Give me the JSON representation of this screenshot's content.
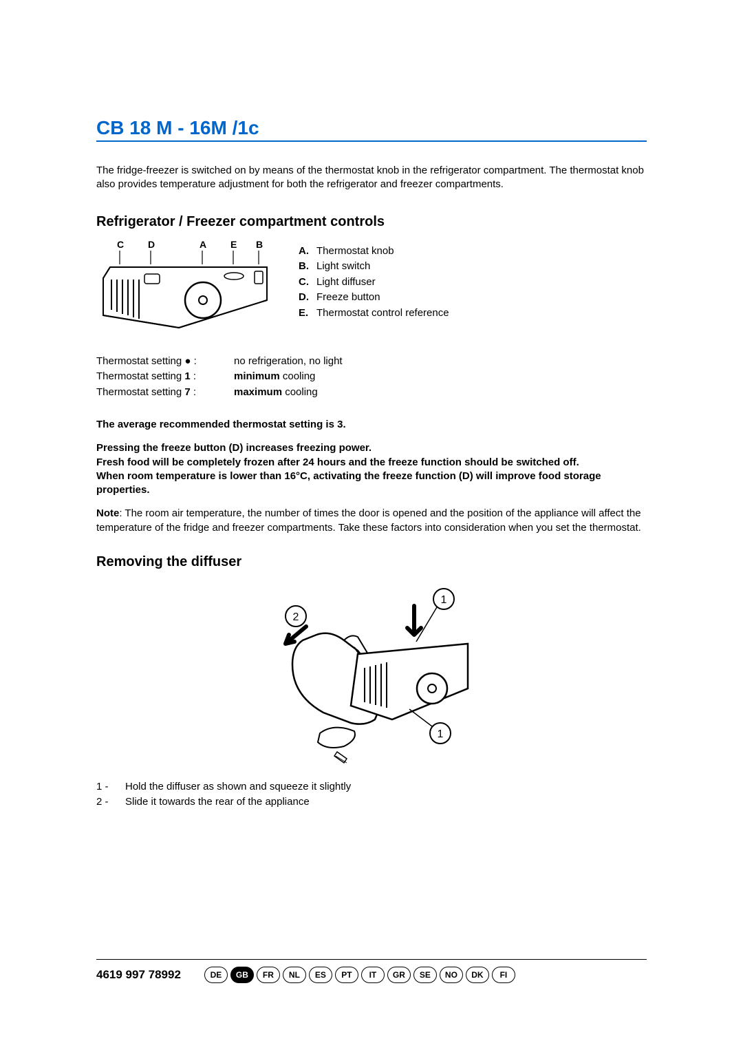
{
  "title": "CB 18 M - 16M /1c",
  "title_color": "#0066cc",
  "intro": "The fridge-freezer is switched on by means of the thermostat knob in the refrigerator compartment. The thermostat knob also provides temperature adjustment for both the refrigerator and freezer compartments.",
  "section1": {
    "heading": "Refrigerator / Freezer compartment controls",
    "labels": {
      "A": "Thermostat knob",
      "B": "Light switch",
      "C": "Light diffuser",
      "D": "Freeze button",
      "E": "Thermostat control reference"
    },
    "diagram_letters": {
      "C": "C",
      "D": "D",
      "A": "A",
      "E": "E",
      "B": "B"
    }
  },
  "settings": {
    "row0_label": "Thermostat setting ● :",
    "row0_val_plain": "no refrigeration, no light",
    "row1_label": "Thermostat setting 1 :",
    "row1_val_bold": "minimum",
    "row1_val_tail": " cooling",
    "row2_label": "Thermostat setting 7 :",
    "row2_val_bold": "maximum",
    "row2_val_tail": " cooling"
  },
  "strong_lines": {
    "l1": "The average recommended thermostat setting is 3.",
    "l2": "Pressing the freeze button (D) increases freezing power.",
    "l3": "Fresh food will be completely frozen after 24 hours and the freeze function should be switched off.",
    "l4": "When room temperature is lower than 16°C, activating the freeze function (D) will improve food storage properties."
  },
  "note_label": "Note",
  "note_text": ": The room air temperature, the number of times the door is opened and the position of the appliance will affect the temperature of the fridge and freezer compartments. Take these factors into consideration when you set the thermostat.",
  "section2": {
    "heading": "Removing the diffuser",
    "callouts": {
      "c1": "1",
      "c2": "2",
      "c1b": "1"
    },
    "step1_n": "1  - ",
    "step1_t": "Hold the diffuser as shown and squeeze it slightly",
    "step2_n": "2  - ",
    "step2_t": "Slide it towards the rear of the appliance"
  },
  "footer": {
    "code": "4619 997 78992",
    "langs": [
      "DE",
      "GB",
      "FR",
      "NL",
      "ES",
      "PT",
      "IT",
      "GR",
      "SE",
      "NO",
      "DK",
      "FI"
    ],
    "active": "GB"
  }
}
